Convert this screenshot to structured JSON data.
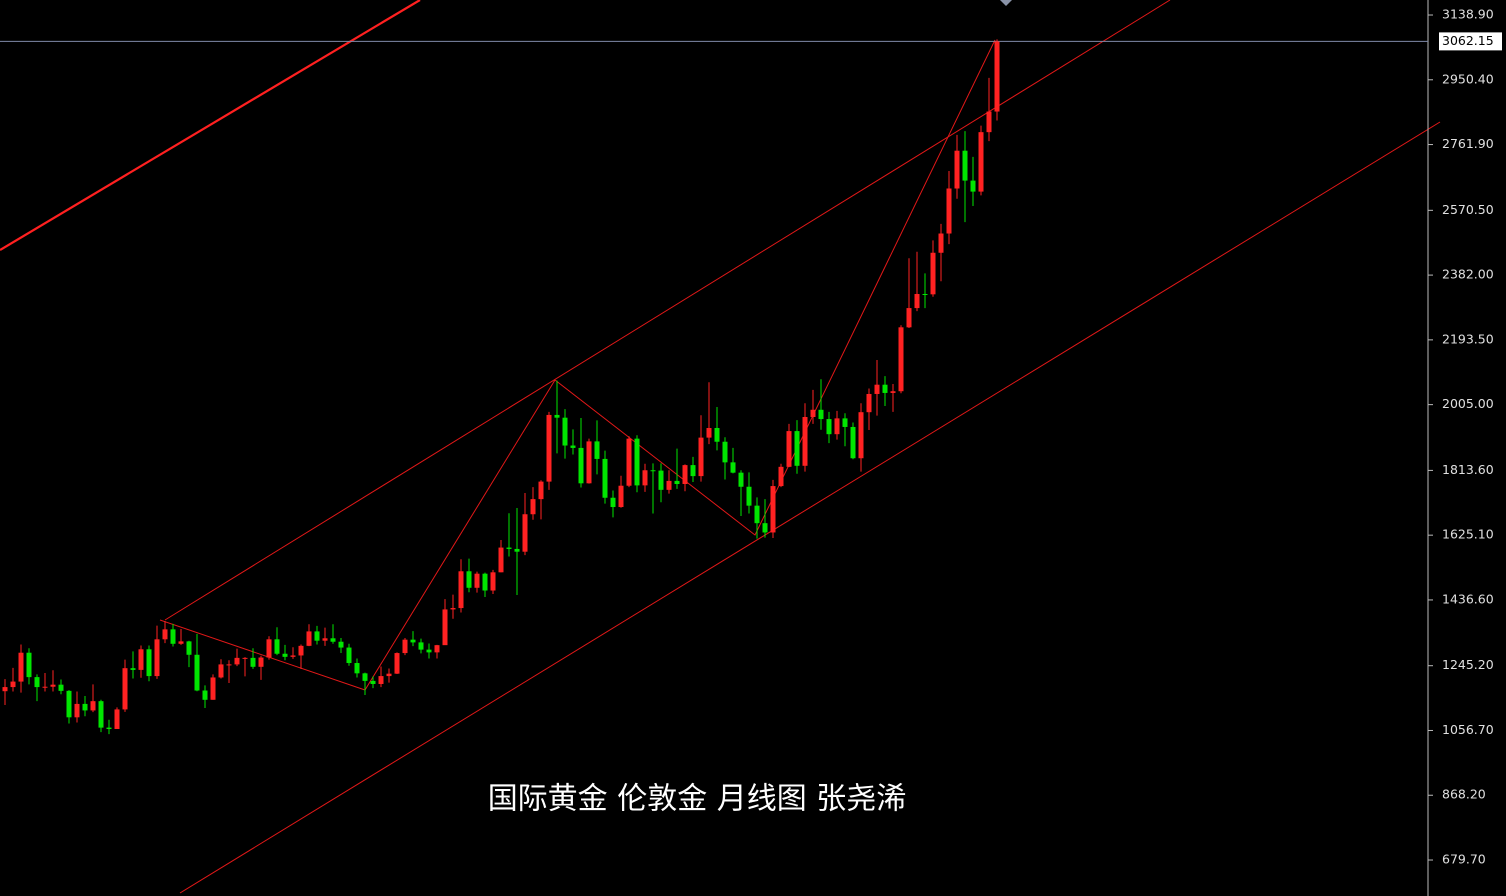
{
  "chart_data": {
    "type": "candlestick",
    "title": "国际黄金 伦敦金 月线图 张尧浠",
    "ohlc": [
      [
        1171,
        1206,
        1131,
        1183
      ],
      [
        1183,
        1239,
        1170,
        1199
      ],
      [
        1199,
        1307,
        1167,
        1283
      ],
      [
        1283,
        1296,
        1191,
        1212
      ],
      [
        1212,
        1220,
        1142,
        1183
      ],
      [
        1183,
        1224,
        1170,
        1184
      ],
      [
        1184,
        1232,
        1170,
        1190
      ],
      [
        1190,
        1205,
        1162,
        1172
      ],
      [
        1172,
        1174,
        1077,
        1095
      ],
      [
        1095,
        1170,
        1080,
        1134
      ],
      [
        1134,
        1157,
        1098,
        1115
      ],
      [
        1115,
        1191,
        1110,
        1142
      ],
      [
        1142,
        1146,
        1052,
        1065
      ],
      [
        1065,
        1088,
        1046,
        1061
      ],
      [
        1061,
        1124,
        1062,
        1118
      ],
      [
        1118,
        1263,
        1111,
        1238
      ],
      [
        1238,
        1287,
        1208,
        1233
      ],
      [
        1233,
        1304,
        1210,
        1293
      ],
      [
        1293,
        1304,
        1200,
        1215
      ],
      [
        1215,
        1362,
        1207,
        1322
      ],
      [
        1322,
        1375,
        1311,
        1351
      ],
      [
        1351,
        1367,
        1301,
        1309
      ],
      [
        1309,
        1352,
        1306,
        1316
      ],
      [
        1316,
        1318,
        1241,
        1277
      ],
      [
        1277,
        1338,
        1171,
        1173
      ],
      [
        1173,
        1188,
        1122,
        1146
      ],
      [
        1146,
        1220,
        1146,
        1211
      ],
      [
        1211,
        1264,
        1208,
        1249
      ],
      [
        1249,
        1261,
        1195,
        1249
      ],
      [
        1249,
        1295,
        1244,
        1268
      ],
      [
        1268,
        1270,
        1214,
        1268
      ],
      [
        1268,
        1296,
        1236,
        1242
      ],
      [
        1242,
        1274,
        1204,
        1269
      ],
      [
        1269,
        1331,
        1263,
        1322
      ],
      [
        1322,
        1357,
        1276,
        1280
      ],
      [
        1280,
        1306,
        1261,
        1271
      ],
      [
        1271,
        1299,
        1265,
        1275
      ],
      [
        1275,
        1307,
        1236,
        1303
      ],
      [
        1303,
        1366,
        1302,
        1345
      ],
      [
        1345,
        1361,
        1307,
        1318
      ],
      [
        1318,
        1356,
        1303,
        1325
      ],
      [
        1325,
        1366,
        1309,
        1315
      ],
      [
        1315,
        1326,
        1282,
        1298
      ],
      [
        1298,
        1309,
        1245,
        1253
      ],
      [
        1253,
        1266,
        1211,
        1223
      ],
      [
        1223,
        1225,
        1160,
        1201
      ],
      [
        1201,
        1214,
        1180,
        1192
      ],
      [
        1192,
        1243,
        1183,
        1215
      ],
      [
        1215,
        1237,
        1196,
        1222
      ],
      [
        1222,
        1284,
        1221,
        1282
      ],
      [
        1282,
        1326,
        1276,
        1321
      ],
      [
        1321,
        1346,
        1302,
        1313
      ],
      [
        1313,
        1324,
        1281,
        1292
      ],
      [
        1292,
        1310,
        1266,
        1284
      ],
      [
        1284,
        1306,
        1266,
        1305
      ],
      [
        1305,
        1439,
        1306,
        1409
      ],
      [
        1409,
        1452,
        1382,
        1413
      ],
      [
        1413,
        1555,
        1400,
        1520
      ],
      [
        1520,
        1557,
        1459,
        1472
      ],
      [
        1472,
        1519,
        1458,
        1513
      ],
      [
        1513,
        1516,
        1445,
        1464
      ],
      [
        1464,
        1524,
        1454,
        1517
      ],
      [
        1517,
        1611,
        1517,
        1589
      ],
      [
        1589,
        1689,
        1563,
        1585
      ],
      [
        1585,
        1704,
        1451,
        1577
      ],
      [
        1577,
        1748,
        1567,
        1686
      ],
      [
        1686,
        1765,
        1670,
        1730
      ],
      [
        1730,
        1785,
        1671,
        1781
      ],
      [
        1781,
        1984,
        1757,
        1975
      ],
      [
        1975,
        2075,
        1863,
        1967
      ],
      [
        1967,
        1992,
        1848,
        1886
      ],
      [
        1886,
        1933,
        1860,
        1879
      ],
      [
        1879,
        1966,
        1764,
        1776
      ],
      [
        1776,
        1906,
        1775,
        1898
      ],
      [
        1898,
        1959,
        1802,
        1847
      ],
      [
        1847,
        1871,
        1717,
        1734
      ],
      [
        1734,
        1755,
        1677,
        1707
      ],
      [
        1707,
        1798,
        1705,
        1769
      ],
      [
        1769,
        1913,
        1765,
        1906
      ],
      [
        1906,
        1916,
        1750,
        1770
      ],
      [
        1770,
        1833,
        1751,
        1814
      ],
      [
        1814,
        1834,
        1688,
        1813
      ],
      [
        1813,
        1834,
        1721,
        1757
      ],
      [
        1757,
        1814,
        1746,
        1783
      ],
      [
        1783,
        1877,
        1760,
        1774
      ],
      [
        1774,
        1831,
        1753,
        1829
      ],
      [
        1829,
        1853,
        1780,
        1797
      ],
      [
        1797,
        1974,
        1781,
        1909
      ],
      [
        1909,
        2070,
        1890,
        1937
      ],
      [
        1937,
        1998,
        1872,
        1897
      ],
      [
        1897,
        1910,
        1787,
        1837
      ],
      [
        1837,
        1879,
        1805,
        1807
      ],
      [
        1807,
        1814,
        1681,
        1766
      ],
      [
        1766,
        1808,
        1688,
        1711
      ],
      [
        1711,
        1735,
        1615,
        1660
      ],
      [
        1660,
        1730,
        1618,
        1633
      ],
      [
        1633,
        1786,
        1617,
        1768
      ],
      [
        1768,
        1833,
        1765,
        1824
      ],
      [
        1824,
        1949,
        1823,
        1928
      ],
      [
        1928,
        1960,
        1804,
        1827
      ],
      [
        1827,
        2009,
        1810,
        1969
      ],
      [
        1969,
        2048,
        1949,
        1990
      ],
      [
        1990,
        2079,
        1932,
        1963
      ],
      [
        1963,
        1984,
        1893,
        1919
      ],
      [
        1919,
        1987,
        1903,
        1965
      ],
      [
        1965,
        1980,
        1884,
        1940
      ],
      [
        1940,
        1953,
        1846,
        1849
      ],
      [
        1849,
        2009,
        1810,
        1983
      ],
      [
        1983,
        2052,
        1931,
        2036
      ],
      [
        2036,
        2135,
        1973,
        2063
      ],
      [
        2063,
        2088,
        2001,
        2039
      ],
      [
        2039,
        2065,
        1984,
        2044
      ],
      [
        2044,
        2236,
        2038,
        2230
      ],
      [
        2230,
        2431,
        2228,
        2286
      ],
      [
        2286,
        2450,
        2277,
        2327
      ],
      [
        2327,
        2387,
        2286,
        2326
      ],
      [
        2326,
        2483,
        2319,
        2447
      ],
      [
        2447,
        2531,
        2364,
        2503
      ],
      [
        2503,
        2685,
        2472,
        2634
      ],
      [
        2634,
        2790,
        2604,
        2744
      ],
      [
        2744,
        2801,
        2536,
        2657
      ],
      [
        2657,
        2726,
        2583,
        2625
      ],
      [
        2625,
        2817,
        2614,
        2798
      ],
      [
        2798,
        2956,
        2772,
        2858
      ],
      [
        2858,
        3068,
        2832,
        3062
      ]
    ],
    "ylim": [
      583.7,
      3182.6
    ],
    "yticks": [
      {
        "value": 3138.9,
        "label": "3138.90"
      },
      {
        "value": 2950.4,
        "label": "2950.40"
      },
      {
        "value": 2761.9,
        "label": "2761.90"
      },
      {
        "value": 2570.5,
        "label": "2570.50"
      },
      {
        "value": 2382,
        "label": "2382.00"
      },
      {
        "value": 2193.5,
        "label": "2193.50"
      },
      {
        "value": 2005,
        "label": "2005.00"
      },
      {
        "value": 1813.6,
        "label": "1813.60"
      },
      {
        "value": 1625.1,
        "label": "1625.10"
      },
      {
        "value": 1436.6,
        "label": "1436.60"
      },
      {
        "value": 1245.2,
        "label": "1245.20"
      },
      {
        "value": 1056.7,
        "label": "1056.70"
      },
      {
        "value": 868.2,
        "label": "868.20"
      },
      {
        "value": 679.7,
        "label": "679.70"
      }
    ],
    "last_price": {
      "value": 3062.15,
      "label": "3062.15"
    },
    "up_color": "#ff2222",
    "down_color": "#00e600"
  }
}
